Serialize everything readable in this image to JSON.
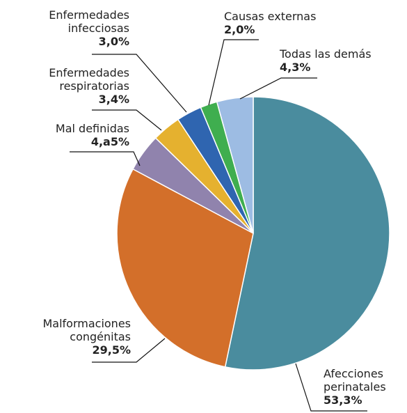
{
  "chart_data": {
    "type": "pie",
    "categories": [
      "Afecciones perinatales",
      "Malformaciones congénitas",
      "Mal definidas",
      "Enfermedades respiratorias",
      "Enfermedades infecciosas",
      "Causas externas",
      "Todas las demás"
    ],
    "values": [
      53.3,
      29.5,
      4.5,
      3.4,
      3.0,
      2.0,
      4.3
    ],
    "value_labels": [
      "53,3%",
      "29,5%",
      "4,a5%",
      "3,4%",
      "3,0%",
      "2,0%",
      "4,3%"
    ],
    "colors": [
      "#4a8c9e",
      "#d36f2a",
      "#9083ad",
      "#e5b12f",
      "#2f65b0",
      "#3fae4f",
      "#9dbce3"
    ]
  }
}
